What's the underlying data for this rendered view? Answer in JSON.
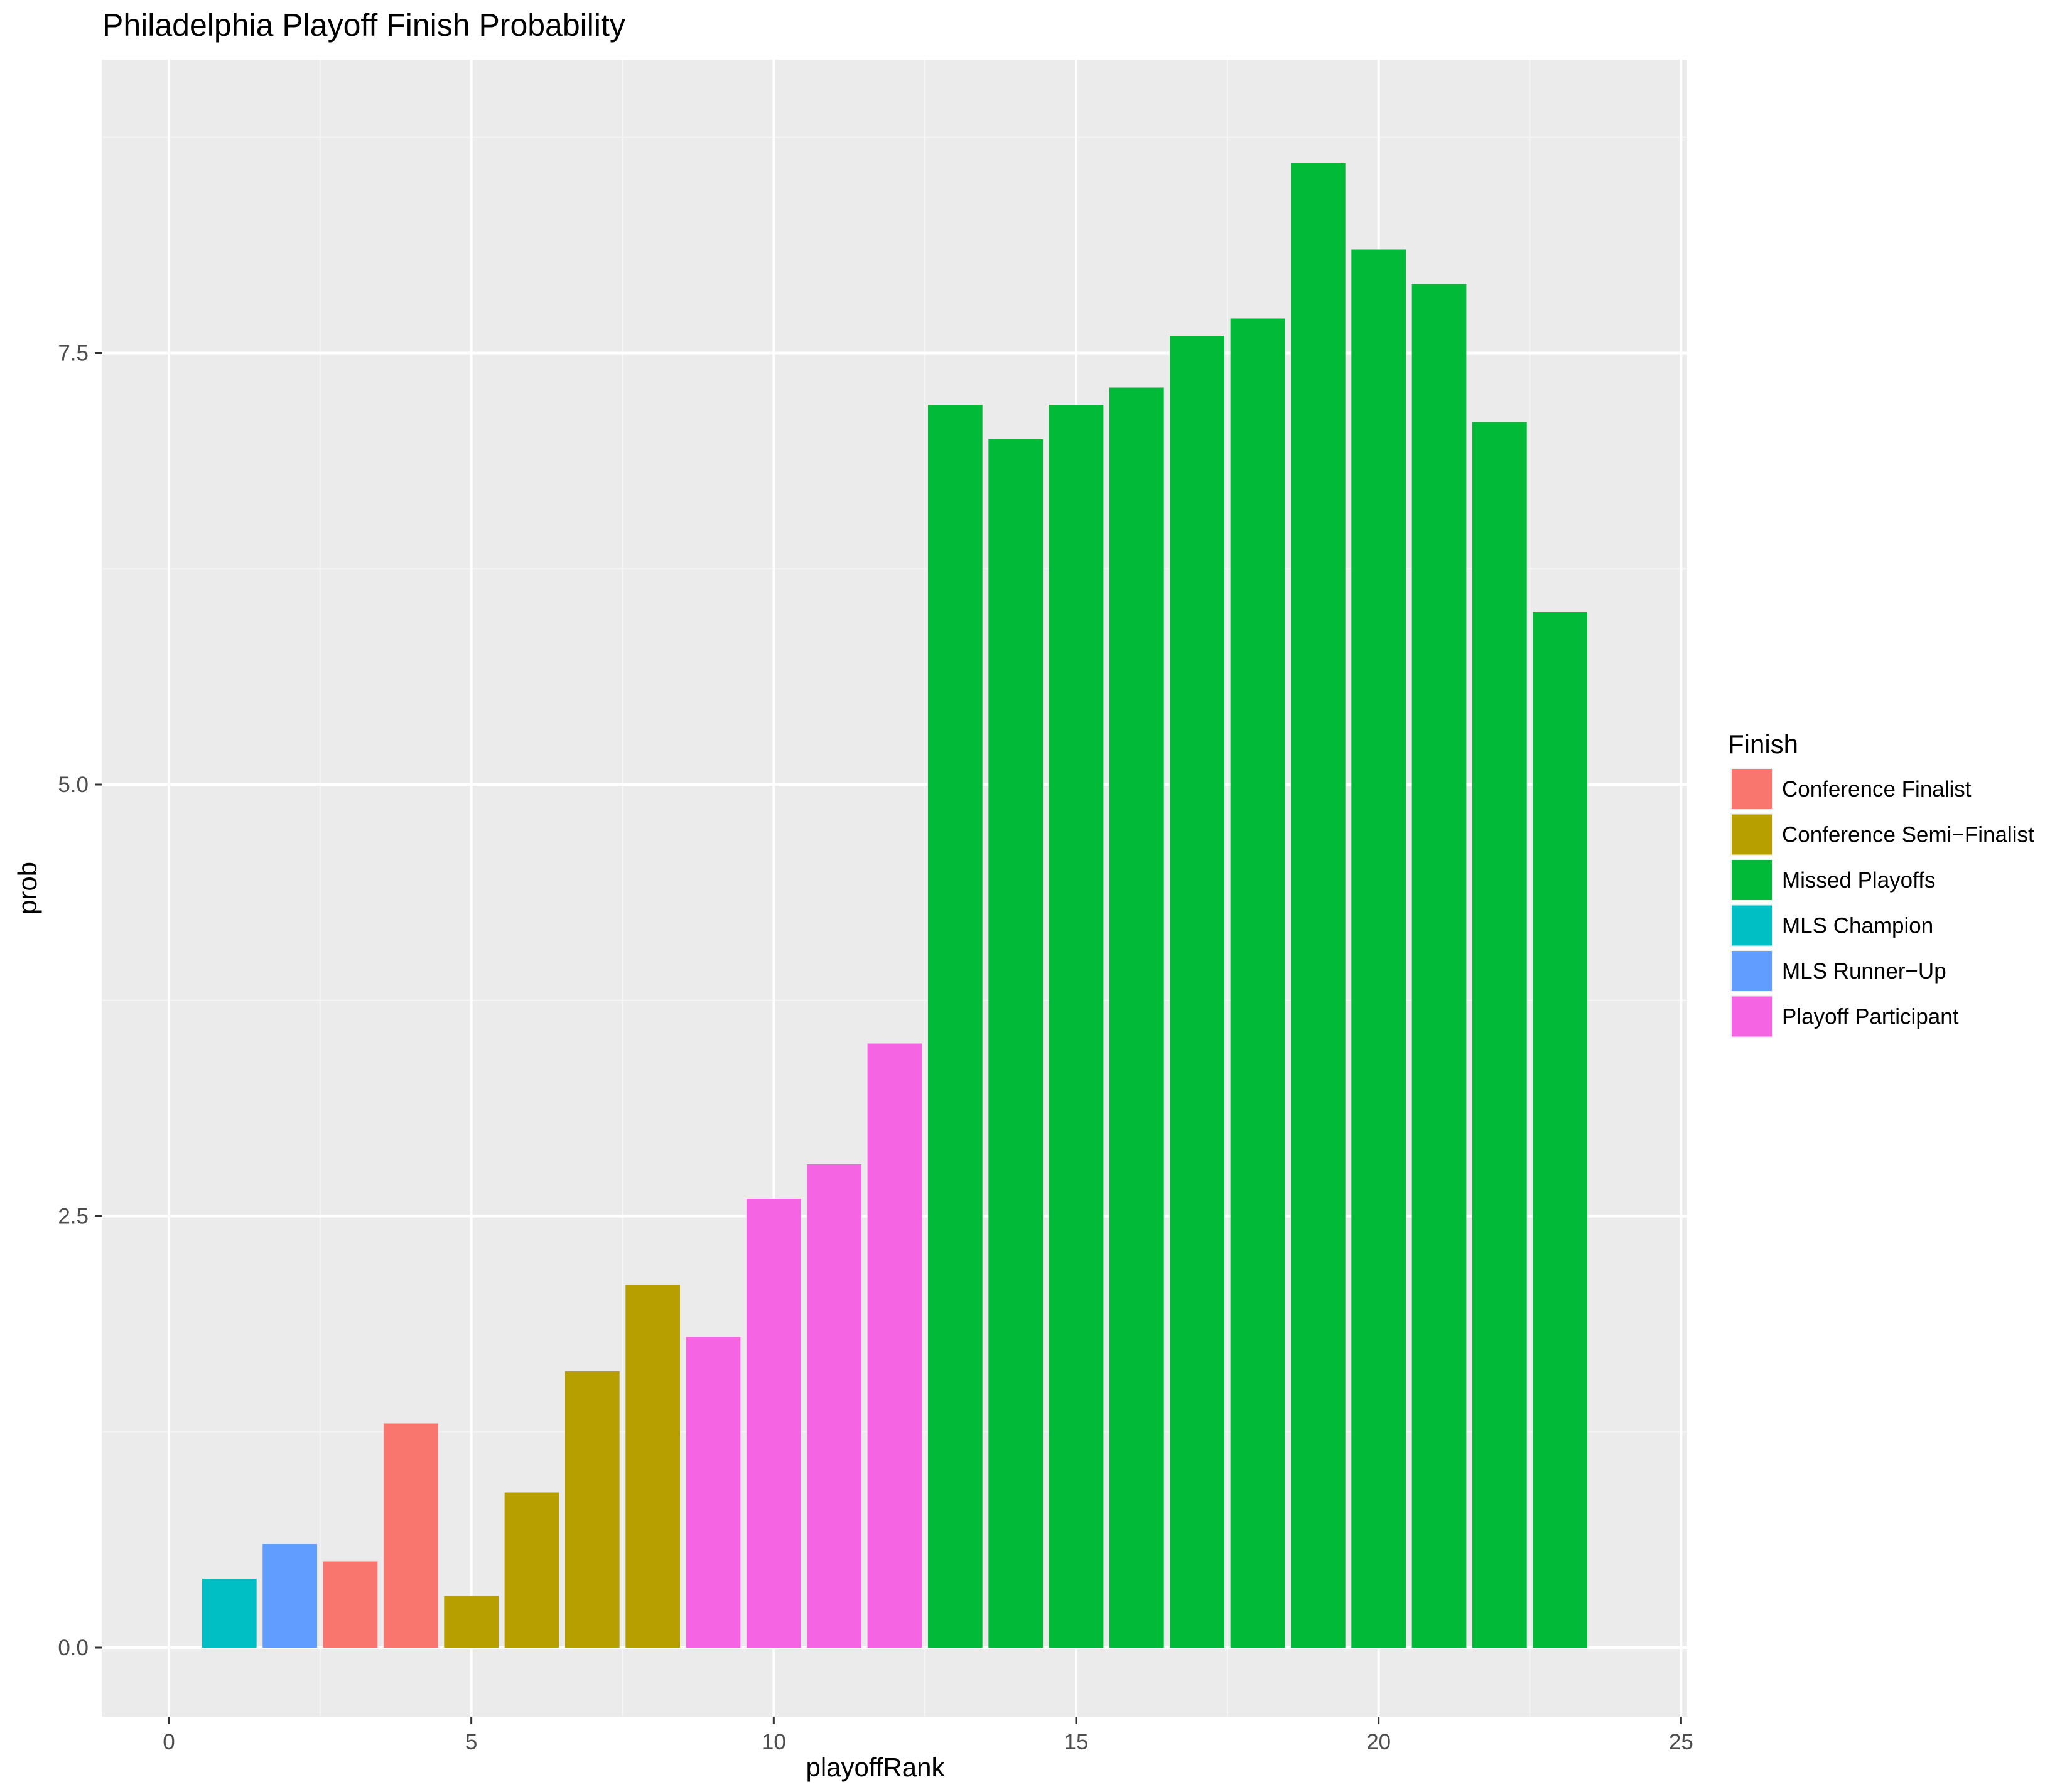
{
  "chart_data": {
    "type": "bar",
    "title": "Philadelphia Playoff Finish Probability",
    "xlabel": "playoffRank",
    "ylabel": "prob",
    "xlim": [
      -1.1,
      25.1
    ],
    "ylim": [
      -0.4,
      9.2
    ],
    "x_ticks": [
      0,
      5,
      10,
      15,
      20,
      25
    ],
    "x_tick_labels": [
      "0",
      "5",
      "10",
      "15",
      "20",
      "25"
    ],
    "y_ticks": [
      0,
      2.5,
      5,
      7.5
    ],
    "y_tick_labels": [
      "0.0",
      "2.5",
      "5.0",
      "7.5"
    ],
    "grid": true,
    "legend": {
      "title": "Finish",
      "position": "right",
      "entries": [
        {
          "label": "Conference Finalist",
          "color": "#F8766D"
        },
        {
          "label": "Conference Semi−Finalist",
          "color": "#B79F00"
        },
        {
          "label": "Missed Playoffs",
          "color": "#00BA38"
        },
        {
          "label": "MLS Champion",
          "color": "#00BFC4"
        },
        {
          "label": "MLS Runner−Up",
          "color": "#619CFF"
        },
        {
          "label": "Playoff Participant",
          "color": "#F564E3"
        }
      ]
    },
    "bars": [
      {
        "x": 1,
        "value": 0.4,
        "finish": "MLS Champion"
      },
      {
        "x": 2,
        "value": 0.6,
        "finish": "MLS Runner−Up"
      },
      {
        "x": 3,
        "value": 0.5,
        "finish": "Conference Finalist"
      },
      {
        "x": 4,
        "value": 1.3,
        "finish": "Conference Finalist"
      },
      {
        "x": 5,
        "value": 0.3,
        "finish": "Conference Semi−Finalist"
      },
      {
        "x": 6,
        "value": 0.9,
        "finish": "Conference Semi−Finalist"
      },
      {
        "x": 7,
        "value": 1.6,
        "finish": "Conference Semi−Finalist"
      },
      {
        "x": 8,
        "value": 2.1,
        "finish": "Conference Semi−Finalist"
      },
      {
        "x": 9,
        "value": 1.8,
        "finish": "Playoff Participant"
      },
      {
        "x": 10,
        "value": 2.6,
        "finish": "Playoff Participant"
      },
      {
        "x": 11,
        "value": 2.8,
        "finish": "Playoff Participant"
      },
      {
        "x": 12,
        "value": 3.5,
        "finish": "Playoff Participant"
      },
      {
        "x": 13,
        "value": 7.2,
        "finish": "Missed Playoffs"
      },
      {
        "x": 14,
        "value": 7.0,
        "finish": "Missed Playoffs"
      },
      {
        "x": 15,
        "value": 7.2,
        "finish": "Missed Playoffs"
      },
      {
        "x": 16,
        "value": 7.3,
        "finish": "Missed Playoffs"
      },
      {
        "x": 17,
        "value": 7.6,
        "finish": "Missed Playoffs"
      },
      {
        "x": 18,
        "value": 7.7,
        "finish": "Missed Playoffs"
      },
      {
        "x": 19,
        "value": 8.6,
        "finish": "Missed Playoffs"
      },
      {
        "x": 20,
        "value": 8.1,
        "finish": "Missed Playoffs"
      },
      {
        "x": 21,
        "value": 7.9,
        "finish": "Missed Playoffs"
      },
      {
        "x": 22,
        "value": 7.1,
        "finish": "Missed Playoffs"
      },
      {
        "x": 23,
        "value": 6.0,
        "finish": "Missed Playoffs"
      }
    ]
  },
  "colors": {
    "panel_background": "#EBEBEB",
    "grid_major": "#FFFFFF",
    "grid_minor": "#F5F5F5",
    "text": "#000000",
    "tick_text": "#4D4D4D"
  }
}
